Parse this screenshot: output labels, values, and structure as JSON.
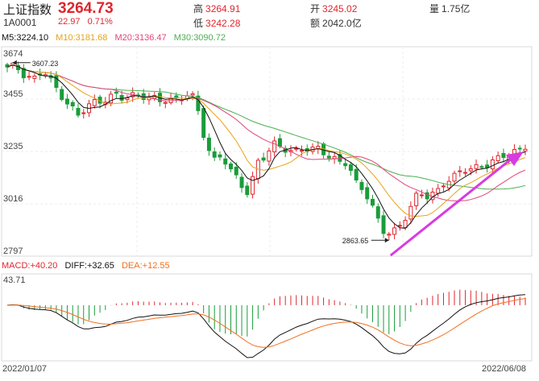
{
  "header": {
    "title": "上证指数",
    "code": "1A0001",
    "price": "3264.73",
    "change": "22.97",
    "change_pct": "0.71%",
    "high_label": "高",
    "high": "3264.91",
    "low_label": "低",
    "low": "3242.28",
    "open_label": "开",
    "open": "3245.02",
    "amount_label": "额",
    "amount": "2042.0亿",
    "volume_label": "量",
    "volume": "1.75亿"
  },
  "ma_legend": {
    "ma5": "M5:3224.10",
    "ma10": "M10:3181.68",
    "ma20": "M20:3136.47",
    "ma30": "M30:3090.72"
  },
  "macd_legend": {
    "macd": "MACD:+40.20",
    "diff": "DIFF:+32.65",
    "dea": "DEA:+12.55"
  },
  "colors": {
    "up": "#e0262d",
    "down": "#1a9c3a",
    "ma5": "#111111",
    "ma10": "#e8a21a",
    "ma20": "#e0457b",
    "ma30": "#4caf50",
    "dea": "#f07020",
    "arrow": "#d63ce0"
  },
  "chart_data": {
    "type": "candlestick",
    "y_ticks": [
      "3674",
      "3455",
      "3235",
      "3016",
      "2797"
    ],
    "ylim": [
      2797,
      3674
    ],
    "annotations": {
      "high_label": "3607.23",
      "low_label": "2863.65"
    },
    "dates": {
      "start": "2022/01/07",
      "end": "2022/06/08"
    },
    "macd_top_label": "43.71",
    "anchor_closes": [
      3580,
      3590,
      3560,
      3540,
      3570,
      3520,
      3480,
      3430,
      3380,
      3420,
      3450,
      3460,
      3470,
      3450,
      3470,
      3480,
      3460,
      3440,
      3450,
      3460,
      3480,
      3450,
      3300,
      3200,
      3230,
      3150,
      3100,
      3060,
      3200,
      3220,
      3260,
      3250,
      3240,
      3250,
      3230,
      3250,
      3220,
      3200,
      3180,
      3100,
      3080,
      3000,
      2900,
      2880,
      2930,
      3000,
      3060,
      3040,
      3060,
      3120,
      3130,
      3150,
      3160,
      3180,
      3190,
      3200,
      3220,
      3240,
      3265
    ]
  }
}
